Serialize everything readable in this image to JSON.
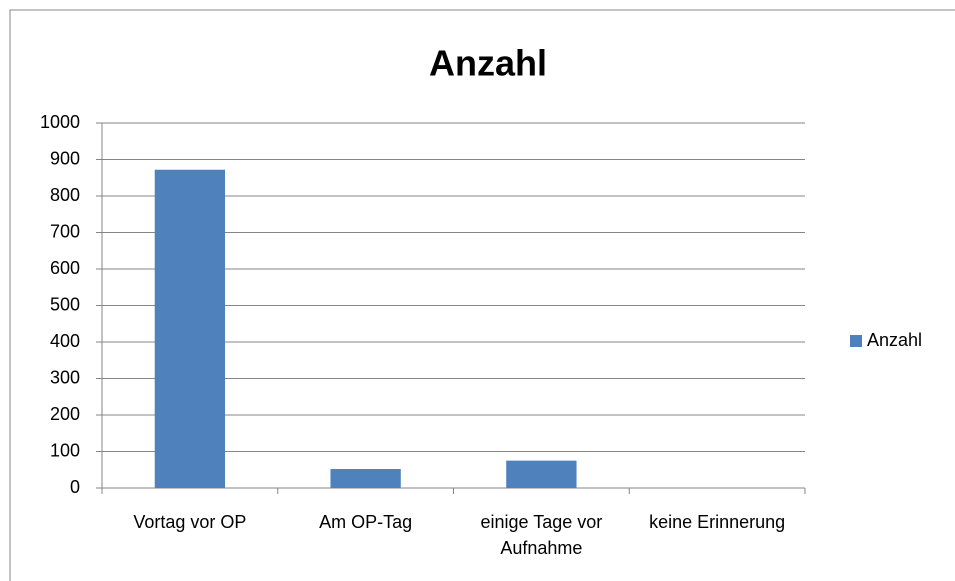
{
  "chart_data": {
    "type": "bar",
    "title": "Anzahl",
    "categories": [
      "Vortag vor OP",
      "Am OP-Tag",
      "einige Tage vor Aufnahme",
      "keine Erinnerung"
    ],
    "series": [
      {
        "name": "Anzahl",
        "color": "#4f81bd",
        "values": [
          872,
          52,
          75,
          0
        ]
      }
    ],
    "ylim": [
      0,
      1000
    ],
    "yticks": [
      0,
      100,
      200,
      300,
      400,
      500,
      600,
      700,
      800,
      900,
      1000
    ],
    "grid": true,
    "legend": "right"
  }
}
